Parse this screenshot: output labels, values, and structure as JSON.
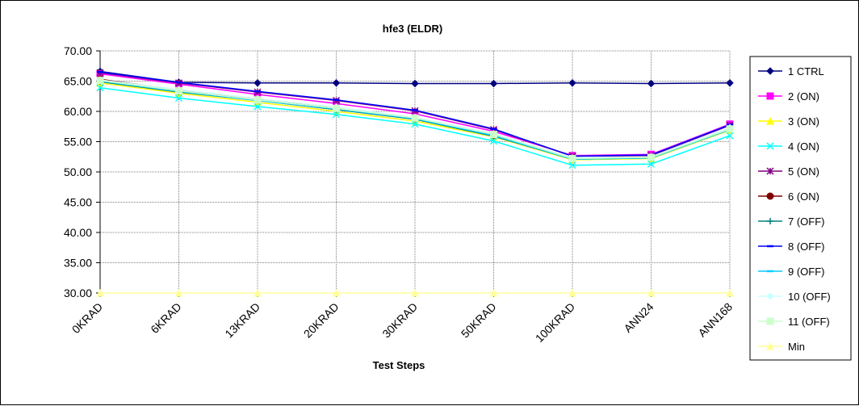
{
  "chart_data": {
    "type": "line",
    "title": "hfe3 (ELDR)",
    "xlabel": "Test Steps",
    "ylabel": "",
    "ylim": [
      30,
      70
    ],
    "yticks": [
      "30.00",
      "35.00",
      "40.00",
      "45.00",
      "50.00",
      "55.00",
      "60.00",
      "65.00",
      "70.00"
    ],
    "grid": true,
    "legend_position": "right",
    "categories": [
      "0KRAD",
      "6KRAD",
      "13KRAD",
      "20KRAD",
      "30KRAD",
      "50KRAD",
      "100KRAD",
      "ANN24",
      "ANN168"
    ],
    "series": [
      {
        "name": "1 CTRL",
        "color": "#000080",
        "marker": "diamond",
        "values": [
          66.6,
          64.8,
          64.7,
          64.7,
          64.6,
          64.6,
          64.7,
          64.6,
          64.7
        ]
      },
      {
        "name": "2 (ON)",
        "color": "#FF00FF",
        "marker": "square",
        "values": [
          66.2,
          64.5,
          62.8,
          61.3,
          59.6,
          56.7,
          52.7,
          52.9,
          57.9
        ]
      },
      {
        "name": "3 (ON)",
        "color": "#FFFF00",
        "marker": "triangle",
        "values": [
          64.7,
          63.0,
          61.5,
          60.0,
          58.4,
          55.8,
          52.0,
          52.2,
          56.9
        ]
      },
      {
        "name": "4 (ON)",
        "color": "#00FFFF",
        "marker": "x",
        "values": [
          63.9,
          62.2,
          60.8,
          59.5,
          57.9,
          55.1,
          51.1,
          51.3,
          56.0
        ]
      },
      {
        "name": "5 (ON)",
        "color": "#800080",
        "marker": "star",
        "values": [
          66.4,
          64.7,
          63.2,
          61.8,
          60.1,
          57.0,
          52.6,
          52.7,
          57.7
        ]
      },
      {
        "name": "6 (ON)",
        "color": "#800000",
        "marker": "circle",
        "values": [
          65.3,
          63.5,
          62.0,
          60.5,
          58.9,
          56.1,
          52.2,
          52.4,
          57.2
        ]
      },
      {
        "name": "7 (OFF)",
        "color": "#008080",
        "marker": "plus",
        "values": [
          64.9,
          63.2,
          61.8,
          60.3,
          58.7,
          55.9,
          52.1,
          52.3,
          57.0
        ]
      },
      {
        "name": "8 (OFF)",
        "color": "#0000FF",
        "marker": "dash",
        "values": [
          66.5,
          64.8,
          63.3,
          61.9,
          60.2,
          57.1,
          52.6,
          52.8,
          57.8
        ]
      },
      {
        "name": "9 (OFF)",
        "color": "#00CCFF",
        "marker": "dash",
        "values": [
          65.0,
          63.3,
          61.8,
          60.4,
          58.8,
          56.0,
          52.1,
          52.3,
          57.0
        ]
      },
      {
        "name": "10 (OFF)",
        "color": "#CCFFFF",
        "marker": "diamond",
        "values": [
          65.2,
          63.6,
          62.1,
          60.7,
          59.0,
          56.3,
          52.3,
          52.5,
          57.3
        ]
      },
      {
        "name": "11 (OFF)",
        "color": "#CCFFCC",
        "marker": "square",
        "values": [
          65.1,
          63.4,
          61.9,
          60.5,
          58.9,
          56.2,
          52.2,
          52.4,
          57.1
        ]
      },
      {
        "name": "Min",
        "color": "#FFFF99",
        "marker": "triangle",
        "values": [
          30,
          30,
          30,
          30,
          30,
          30,
          30,
          30,
          30
        ]
      }
    ]
  }
}
